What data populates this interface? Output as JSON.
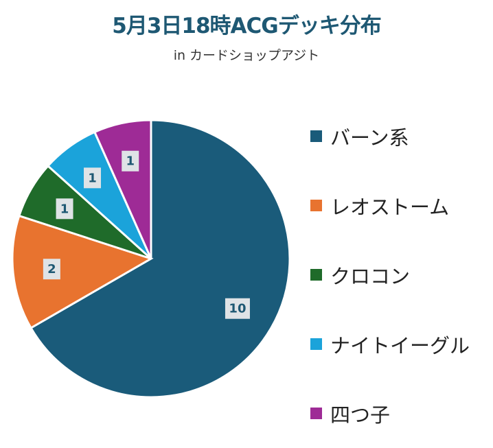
{
  "chart_data": {
    "type": "pie",
    "title": "5月3日18時ACGデッキ分布",
    "subtitle": "in カードショップアジト",
    "slices": [
      {
        "name": "バーン系",
        "value": 10,
        "color": "#1a5b7a"
      },
      {
        "name": "レオストーム",
        "value": 2,
        "color": "#e8732f"
      },
      {
        "name": "クロコン",
        "value": 1,
        "color": "#1f6b2a"
      },
      {
        "name": "ナイトイーグル",
        "value": 1,
        "color": "#1ba3da"
      },
      {
        "name": "四つ子",
        "value": 1,
        "color": "#9e2b96"
      }
    ],
    "legend_position": "right"
  }
}
